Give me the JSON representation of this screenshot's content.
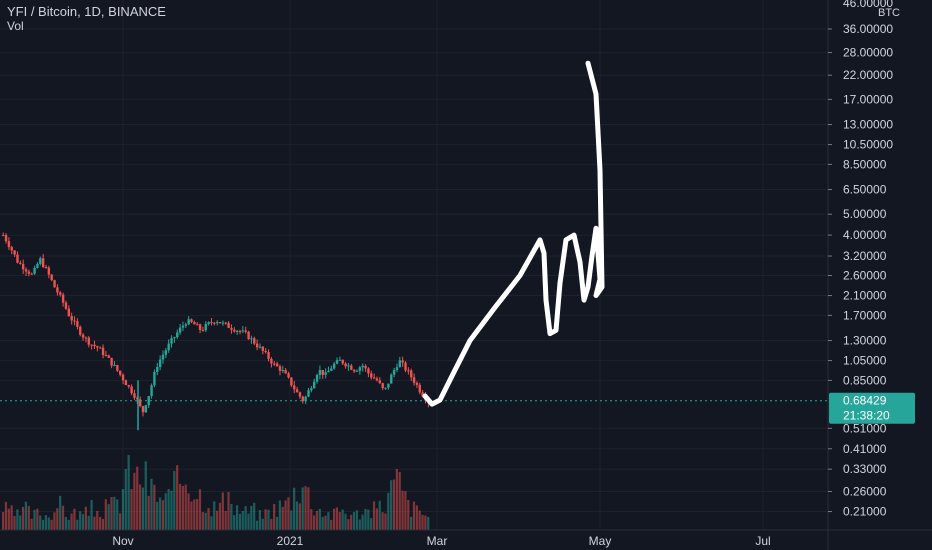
{
  "header": {
    "symbol": "YFI / Bitcoin, 1D, BINANCE",
    "volume_label": "Vol"
  },
  "axis": {
    "currency": "BTC",
    "top_label": "46.00000"
  },
  "price_tag": {
    "value": "0.68429",
    "countdown": "21:38:20",
    "color": "#26a69a"
  },
  "colors": {
    "background": "#131722",
    "grid": "#1e222d",
    "up": "#26a69a",
    "down": "#ef5350",
    "drawing": "#ffffff"
  },
  "chart_data": {
    "type": "candlestick",
    "y_scale": "log",
    "ylim": [
      0.18,
      46
    ],
    "y_ticks": [
      0.21,
      0.26,
      0.33,
      0.41,
      0.51,
      0.85,
      1.05,
      1.3,
      1.7,
      2.1,
      2.6,
      3.2,
      4.0,
      5.0,
      6.5,
      8.5,
      10.5,
      13.0,
      17.0,
      22.0,
      28.0,
      36.0
    ],
    "y_tick_labels": [
      "0.21000",
      "0.26000",
      "0.33000",
      "0.41000",
      "0.51000",
      "0.85000",
      "1.05000",
      "1.30000",
      "1.70000",
      "2.10000",
      "2.60000",
      "3.20000",
      "4.00000",
      "5.00000",
      "6.50000",
      "8.50000",
      "10.50000",
      "13.00000",
      "17.00000",
      "22.00000",
      "28.00000",
      "36.00000"
    ],
    "x_ticks": [
      "Nov",
      "2021",
      "Mar",
      "May",
      "Jul"
    ],
    "current_price": 0.68429,
    "close_path": [
      4.0,
      3.5,
      3.0,
      2.8,
      2.6,
      3.1,
      2.7,
      2.3,
      2.0,
      1.7,
      1.5,
      1.35,
      1.25,
      1.2,
      1.1,
      1.0,
      0.9,
      0.8,
      0.72,
      0.6,
      0.75,
      1.0,
      1.15,
      1.3,
      1.45,
      1.6,
      1.55,
      1.45,
      1.55,
      1.62,
      1.55,
      1.5,
      1.45,
      1.4,
      1.3,
      1.2,
      1.1,
      1.0,
      0.95,
      0.85,
      0.75,
      0.68,
      0.8,
      0.95,
      0.9,
      1.0,
      1.05,
      1.0,
      0.95,
      1.0,
      0.9,
      0.85,
      0.75,
      0.9,
      1.05,
      0.95,
      0.85,
      0.75,
      0.68
    ],
    "volume_path": [
      0.3,
      0.25,
      0.2,
      0.3,
      0.2,
      0.25,
      0.2,
      0.3,
      0.35,
      0.2,
      0.25,
      0.2,
      0.3,
      0.25,
      0.3,
      0.35,
      0.4,
      1.0,
      0.7,
      0.8,
      0.6,
      0.5,
      0.4,
      0.5,
      0.7,
      0.8,
      0.6,
      0.5,
      0.4,
      0.3,
      0.4,
      0.35,
      0.3,
      0.25,
      0.3,
      0.2,
      0.25,
      0.3,
      0.35,
      0.4,
      0.6,
      0.7,
      0.4,
      0.3,
      0.25,
      0.2,
      0.3,
      0.25,
      0.2,
      0.3,
      0.25,
      0.3,
      0.35,
      0.6,
      0.7,
      0.4,
      0.3,
      0.25,
      0.2
    ]
  }
}
